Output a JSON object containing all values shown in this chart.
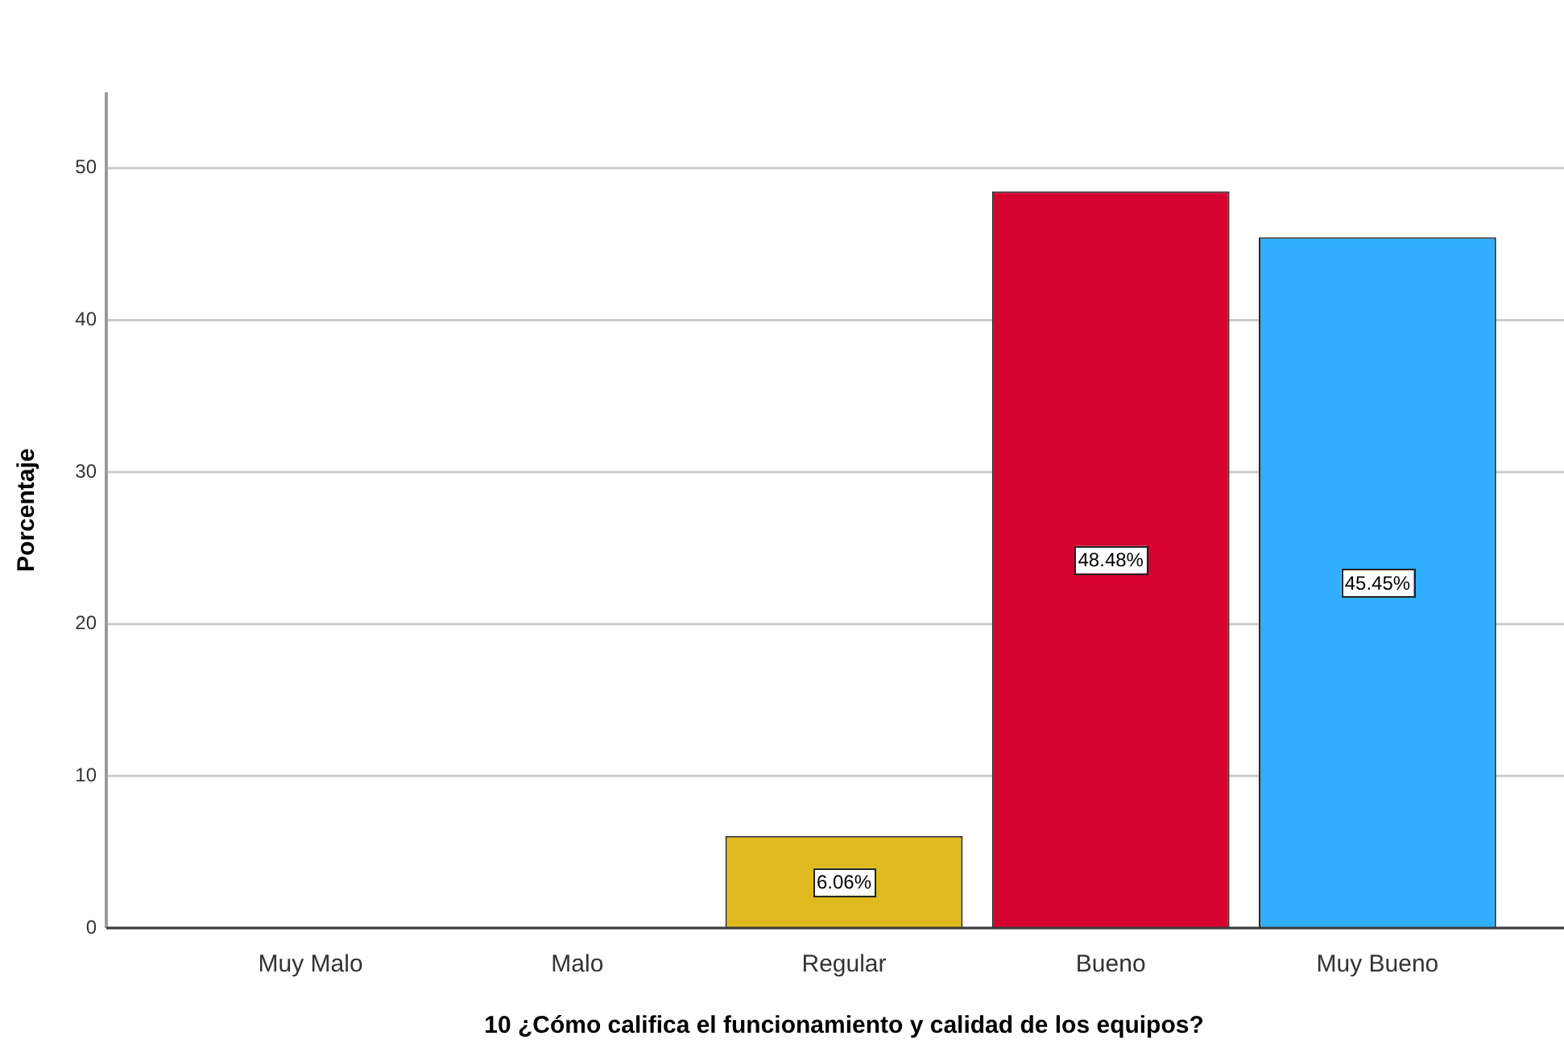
{
  "chart_data": {
    "type": "bar",
    "xlabel": "10 ¿Cómo califica el funcionamiento y calidad de los equipos?",
    "ylabel": "Porcentaje",
    "categories": [
      "Muy Malo",
      "Malo",
      "Regular",
      "Bueno",
      "Muy Bueno"
    ],
    "values": [
      0,
      0,
      6.06,
      48.48,
      45.45
    ],
    "colors": [
      null,
      null,
      "#e0bb1f",
      "#d5002e",
      "#31aefe"
    ],
    "value_labels": [
      null,
      null,
      "6.06%",
      "48.48%",
      "45.45%"
    ],
    "ylim": [
      0,
      55
    ],
    "yticks": [
      0,
      10,
      20,
      30,
      40,
      50
    ],
    "grid": "y"
  }
}
